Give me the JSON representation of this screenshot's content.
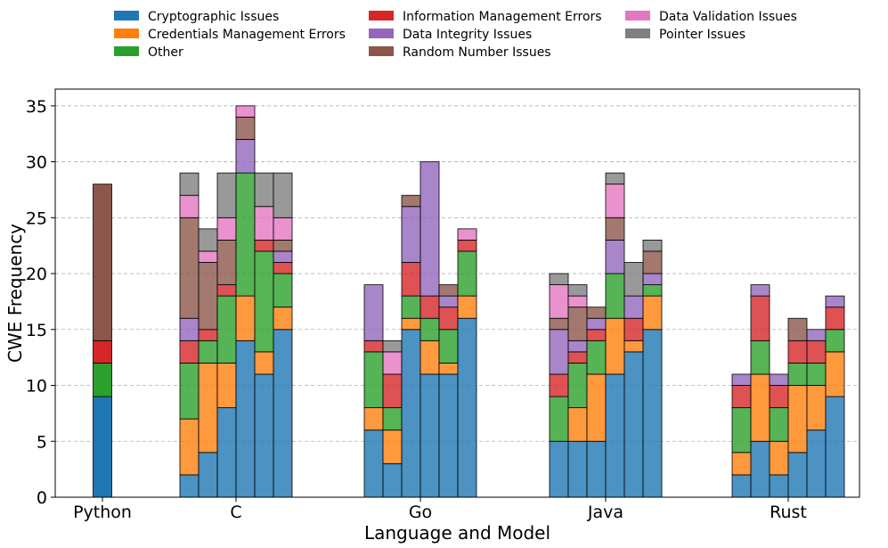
{
  "chart_data": {
    "type": "bar",
    "stacked": true,
    "xlabel": "Language and Model",
    "ylabel": "CWE Frequency",
    "ylim": [
      0,
      36.5
    ],
    "yticks": [
      0,
      5,
      10,
      15,
      20,
      25,
      30,
      35
    ],
    "grid": "horizontal dashed",
    "legend_position": "top",
    "legend": [
      {
        "name": "Cryptographic Issues",
        "color": "#1f77b4"
      },
      {
        "name": "Credentials Management Errors",
        "color": "#ff7f0e"
      },
      {
        "name": "Other",
        "color": "#2ca02c"
      },
      {
        "name": "Information Management Errors",
        "color": "#d62728"
      },
      {
        "name": "Data Integrity Issues",
        "color": "#9467bd"
      },
      {
        "name": "Random Number Issues",
        "color": "#8c564b"
      },
      {
        "name": "Data Validation Issues",
        "color": "#e377c2"
      },
      {
        "name": "Pointer Issues",
        "color": "#7f7f7f"
      }
    ],
    "categories": [
      {
        "name": "Python",
        "color": "#ff0000"
      },
      {
        "name": "C",
        "color": "#000000"
      },
      {
        "name": "Go",
        "color": "#000000"
      },
      {
        "name": "Java",
        "color": "#000000"
      },
      {
        "name": "Rust",
        "color": "#000000"
      }
    ],
    "groups": [
      {
        "language": "Python",
        "faded": false,
        "bars": [
          [
            9,
            0,
            3,
            2,
            0,
            14,
            0,
            0
          ]
        ]
      },
      {
        "language": "C",
        "faded": true,
        "bars": [
          [
            2,
            5,
            5,
            2,
            2,
            9,
            2,
            2
          ],
          [
            4,
            8,
            2,
            1,
            0,
            6,
            1,
            2
          ],
          [
            8,
            4,
            6,
            1,
            0,
            4,
            2,
            4
          ],
          [
            14,
            4,
            11,
            0,
            3,
            2,
            1,
            0
          ],
          [
            11,
            2,
            9,
            1,
            0,
            0,
            3,
            3
          ],
          [
            15,
            2,
            3,
            1,
            1,
            1,
            2,
            4
          ]
        ]
      },
      {
        "language": "Go",
        "faded": true,
        "bars": [
          [
            6,
            2,
            5,
            1,
            5,
            0,
            0,
            0
          ],
          [
            3,
            3,
            2,
            3,
            0,
            0,
            2,
            1
          ],
          [
            15,
            1,
            2,
            3,
            5,
            1,
            0,
            0
          ],
          [
            11,
            3,
            2,
            2,
            12,
            0,
            0,
            0
          ],
          [
            11,
            1,
            3,
            2,
            1,
            1,
            0,
            0
          ],
          [
            16,
            2,
            4,
            1,
            0,
            0,
            1,
            0
          ]
        ]
      },
      {
        "language": "Java",
        "faded": true,
        "bars": [
          [
            5,
            0,
            4,
            2,
            4,
            1,
            3,
            1
          ],
          [
            5,
            3,
            4,
            1,
            1,
            3,
            1,
            1
          ],
          [
            5,
            6,
            3,
            1,
            1,
            1,
            0,
            0
          ],
          [
            11,
            5,
            4,
            0,
            3,
            2,
            3,
            1
          ],
          [
            13,
            1,
            0,
            2,
            2,
            0,
            0,
            3
          ],
          [
            15,
            3,
            1,
            0,
            1,
            2,
            0,
            1
          ]
        ]
      },
      {
        "language": "Rust",
        "faded": true,
        "bars": [
          [
            2,
            2,
            4,
            2,
            1,
            0,
            0,
            0
          ],
          [
            5,
            6,
            3,
            4,
            1,
            0,
            0,
            0
          ],
          [
            2,
            3,
            3,
            2,
            1,
            0,
            0,
            0
          ],
          [
            4,
            6,
            2,
            2,
            0,
            2,
            0,
            0
          ],
          [
            6,
            4,
            2,
            2,
            1,
            0,
            0,
            0
          ],
          [
            9,
            4,
            2,
            2,
            1,
            0,
            0,
            0
          ]
        ]
      }
    ]
  }
}
